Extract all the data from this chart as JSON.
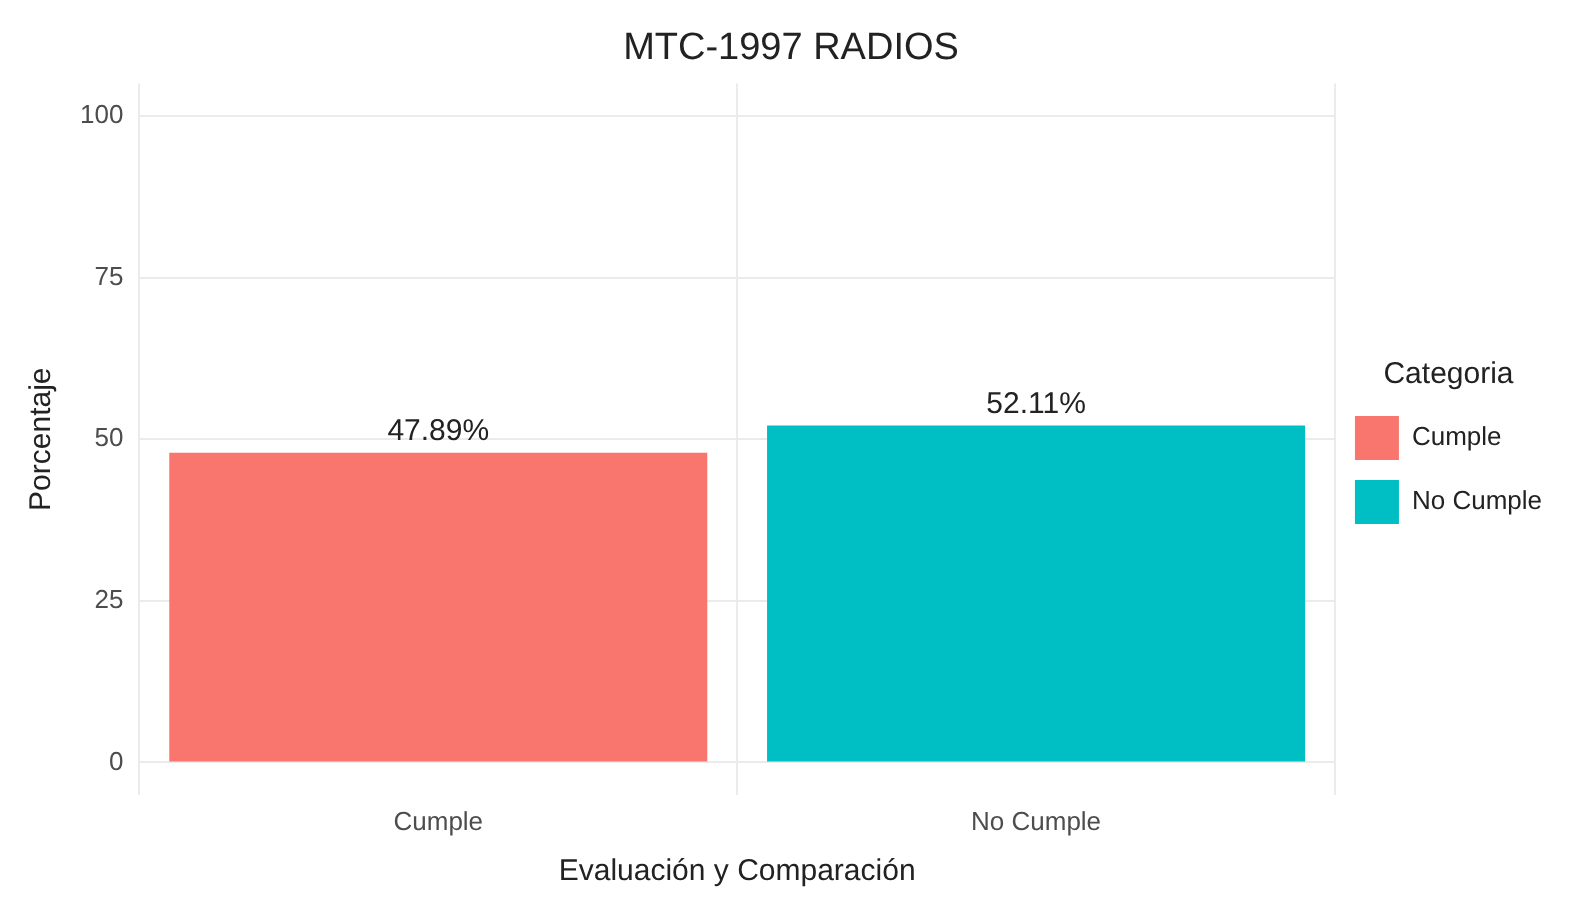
{
  "chart_data": {
    "type": "bar",
    "title": "MTC-1997 RADIOS",
    "xlabel": "Evaluación y Comparación",
    "ylabel": "Porcentaje",
    "legend_title": "Categoria",
    "categories": [
      "Cumple",
      "No Cumple"
    ],
    "series": [
      {
        "name": "Cumple",
        "color": "#f8766d",
        "values": [
          47.89,
          null
        ],
        "value_labels": [
          "47.89%",
          null
        ]
      },
      {
        "name": "No Cumple",
        "color": "#00bfc4",
        "values": [
          null,
          52.11
        ],
        "value_labels": [
          null,
          "52.11%"
        ]
      }
    ],
    "ylim": [
      -5,
      105
    ],
    "yticks": [
      0,
      25,
      50,
      75,
      100
    ],
    "grid": true,
    "legend": "right"
  }
}
